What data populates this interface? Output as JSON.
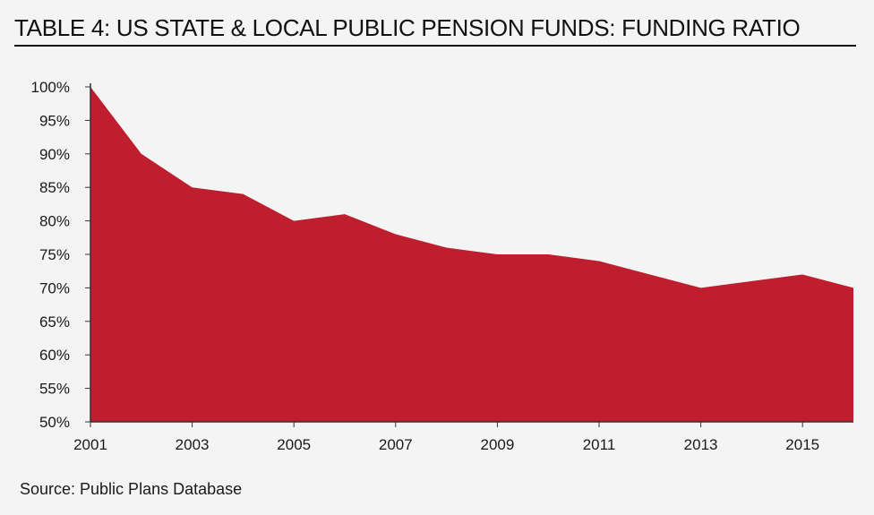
{
  "title": "TABLE 4: US STATE & LOCAL PUBLIC PENSION FUNDS: FUNDING RATIO",
  "source": "Source: Public Plans Database",
  "colors": {
    "area": "#be1e2d",
    "axis": "#333333"
  },
  "chart_data": {
    "type": "area",
    "title": "TABLE 4: US STATE & LOCAL PUBLIC PENSION FUNDS: FUNDING RATIO",
    "xlabel": "",
    "ylabel": "",
    "x": [
      2001,
      2002,
      2003,
      2004,
      2005,
      2006,
      2007,
      2008,
      2009,
      2010,
      2011,
      2012,
      2013,
      2014,
      2015,
      2016
    ],
    "values": [
      100,
      90,
      85,
      84,
      80,
      81,
      78,
      76,
      75,
      75,
      74,
      72,
      70,
      71,
      72,
      70
    ],
    "ylim": [
      50,
      100
    ],
    "xlim": [
      2001,
      2016
    ],
    "yticks": [
      "50%",
      "55%",
      "60%",
      "65%",
      "70%",
      "75%",
      "80%",
      "85%",
      "90%",
      "95%",
      "100%"
    ],
    "ytick_values": [
      50,
      55,
      60,
      65,
      70,
      75,
      80,
      85,
      90,
      95,
      100
    ],
    "xticks": [
      "2001",
      "2003",
      "2005",
      "2007",
      "2009",
      "2011",
      "2013",
      "2015"
    ],
    "xtick_values": [
      2001,
      2003,
      2005,
      2007,
      2009,
      2011,
      2013,
      2015
    ],
    "grid": false,
    "legend": "none"
  }
}
